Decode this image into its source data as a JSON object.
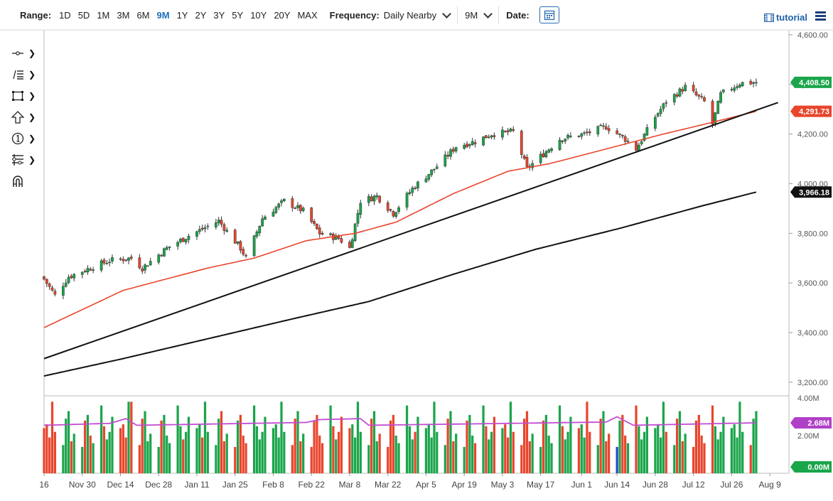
{
  "toolbar": {
    "range_label": "Range:",
    "ranges": [
      "1D",
      "5D",
      "1M",
      "3M",
      "6M",
      "9M",
      "1Y",
      "2Y",
      "3Y",
      "5Y",
      "10Y",
      "20Y",
      "MAX"
    ],
    "active_range": "9M",
    "frequency_label": "Frequency:",
    "frequency_value": "Daily Nearby",
    "period_value": "9M",
    "date_label": "Date:",
    "tutorial_label": "tutorial"
  },
  "left_tools": [
    "crosshair-icon",
    "trendline-icon",
    "rectangle-icon",
    "arrow-up-icon",
    "number-marker-icon",
    "fibonacci-icon",
    "magnet-icon"
  ],
  "colors": {
    "up": "#1aa54a",
    "down": "#e8452c",
    "ma50": "#e8452c",
    "ma200": "#111111",
    "trendline": "#111111",
    "vol_ma": "#c04cd0",
    "price_badge": "#1aa54a",
    "ma50_badge": "#e8452c",
    "ma200_badge": "#111111",
    "vol_badge": "#b040c8",
    "highlight_vol": "#2747c9"
  },
  "chart_data": {
    "type": "candlestick",
    "price_axis": {
      "ticks": [
        3200,
        3400,
        3600,
        3800,
        4000,
        4200,
        4400,
        4600
      ],
      "tick_labels": [
        "3,200.00",
        "3,400.00",
        "3,600.00",
        "3,800.00",
        "4,000.00",
        "4,200.00",
        "4,400.00",
        "4,600.00"
      ],
      "ylim": [
        3145,
        4620
      ]
    },
    "volume_axis": {
      "tick_labels": [
        "4.00M",
        "2.00M"
      ],
      "ylim": [
        0,
        4.0
      ]
    },
    "x_labels": [
      "16",
      "Nov 30",
      "Dec 14",
      "Dec 28",
      "Jan 11",
      "Jan 25",
      "Feb 8",
      "Feb 22",
      "Mar 8",
      "Mar 22",
      "Apr 5",
      "Apr 19",
      "May 3",
      "May 17",
      "Jun 1",
      "Jun 14",
      "Jun 28",
      "Jul 12",
      "Jul 26",
      "Aug 9"
    ],
    "x_label_dates": [
      "2020-11-16",
      "2020-11-30",
      "2020-12-14",
      "2020-12-28",
      "2021-01-11",
      "2021-01-25",
      "2021-02-08",
      "2021-02-22",
      "2021-03-08",
      "2021-03-22",
      "2021-04-05",
      "2021-04-19",
      "2021-05-03",
      "2021-05-17",
      "2021-06-01",
      "2021-06-14",
      "2021-06-28",
      "2021-07-12",
      "2021-07-26",
      "2021-08-09"
    ],
    "x_range": [
      "2020-11-16",
      "2021-08-16"
    ],
    "waypoints": {
      "dates": [
        "2020-11-16",
        "2020-11-20",
        "2020-11-25",
        "2020-12-04",
        "2020-12-10",
        "2020-12-18",
        "2020-12-22",
        "2020-12-31",
        "2021-01-08",
        "2021-01-19",
        "2021-01-27",
        "2021-01-29",
        "2021-02-04",
        "2021-02-12",
        "2021-02-19",
        "2021-02-25",
        "2021-03-04",
        "2021-03-08",
        "2021-03-12",
        "2021-03-18",
        "2021-03-24",
        "2021-03-31",
        "2021-04-09",
        "2021-04-16",
        "2021-04-23",
        "2021-04-29",
        "2021-05-07",
        "2021-05-12",
        "2021-05-18",
        "2021-05-24",
        "2021-06-02",
        "2021-06-10",
        "2021-06-17",
        "2021-06-21",
        "2021-06-28",
        "2021-07-02",
        "2021-07-09",
        "2021-07-16",
        "2021-07-19",
        "2021-07-22",
        "2021-07-29",
        "2021-08-04"
      ],
      "closes": [
        3615,
        3550,
        3625,
        3665,
        3690,
        3700,
        3660,
        3740,
        3790,
        3850,
        3740,
        3700,
        3860,
        3930,
        3890,
        3800,
        3780,
        3740,
        3930,
        3950,
        3880,
        3980,
        4070,
        4150,
        4170,
        4200,
        4210,
        4060,
        4120,
        4180,
        4200,
        4230,
        4180,
        4140,
        4270,
        4330,
        4390,
        4330,
        4240,
        4360,
        4405,
        4408.5
      ]
    },
    "ma50": {
      "dates": [
        "2020-11-16",
        "2020-12-15",
        "2021-01-15",
        "2021-02-01",
        "2021-02-20",
        "2021-03-10",
        "2021-03-25",
        "2021-04-15",
        "2021-05-05",
        "2021-05-20",
        "2021-06-10",
        "2021-07-01",
        "2021-07-20",
        "2021-08-04"
      ],
      "values": [
        3420,
        3570,
        3660,
        3700,
        3770,
        3800,
        3845,
        3960,
        4050,
        4080,
        4140,
        4200,
        4250,
        4291.73
      ]
    },
    "ma200": {
      "dates": [
        "2020-11-16",
        "2020-12-15",
        "2021-01-15",
        "2021-02-15",
        "2021-03-15",
        "2021-04-15",
        "2021-05-15",
        "2021-06-15",
        "2021-07-15",
        "2021-08-04"
      ],
      "values": [
        3225,
        3295,
        3375,
        3455,
        3525,
        3635,
        3735,
        3820,
        3910,
        3966.18
      ]
    },
    "trendline": {
      "dates": [
        "2020-11-16",
        "2021-08-12"
      ],
      "values": [
        3295,
        4327
      ]
    },
    "volume_ma": {
      "dates": [
        "2020-11-16",
        "2020-12-10",
        "2020-12-16",
        "2020-12-20",
        "2021-02-20",
        "2021-02-25",
        "2021-03-12",
        "2021-03-15",
        "2021-06-10",
        "2021-06-14",
        "2021-06-20",
        "2021-08-04"
      ],
      "values": [
        2.55,
        2.65,
        2.9,
        2.55,
        2.7,
        2.85,
        2.9,
        2.55,
        2.72,
        3.0,
        2.55,
        2.68
      ]
    },
    "volume_pattern": [
      2.4,
      2.6,
      1.9,
      3.8,
      2.2,
      1.5,
      2.9,
      3.3,
      1.7,
      2.1,
      1.4,
      2.8,
      3.1,
      2.0,
      1.6,
      3.6,
      2.5,
      1.8,
      2.2,
      3.0
    ],
    "labels": {
      "last_price": "4,408.50",
      "ma50": "4,291.73",
      "ma200": "3,966.18",
      "volume_ma": "2.68M",
      "volume_zero": "0.00M"
    }
  }
}
